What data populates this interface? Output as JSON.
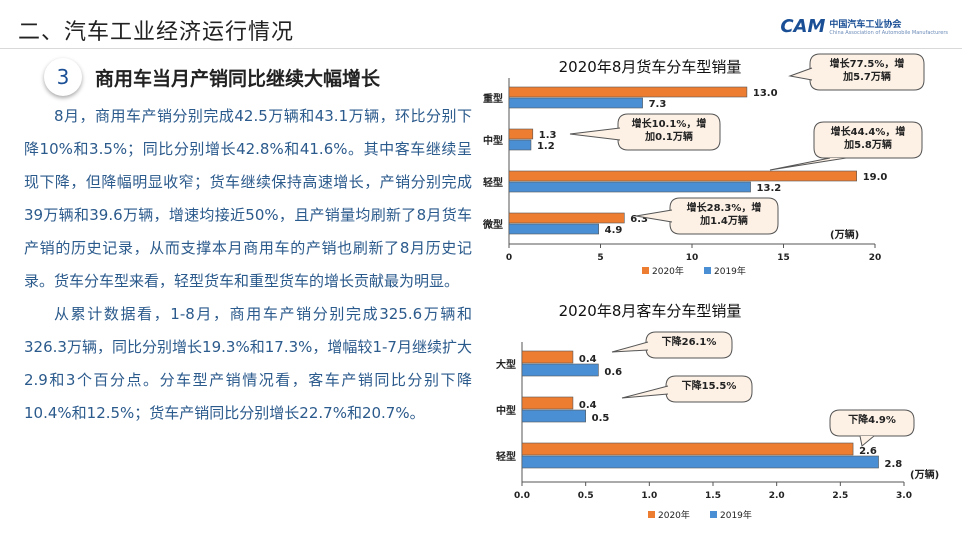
{
  "header": {
    "title": "二、汽车工业经济运行情况"
  },
  "logo": {
    "text": "中国汽车工业协会",
    "mark": "CAM",
    "subtitle": "China Association of Automobile Manufacturers"
  },
  "section": {
    "number": "3",
    "title": "商用车当月产销同比继续大幅增长"
  },
  "paragraphs": [
    "8月，商用车产销分别完成42.5万辆和43.1万辆，环比分别下降10%和3.5%；同比分别增长42.8%和41.6%。其中客车继续呈现下降，但降幅明显收窄；货车继续保持高速增长，产销分别完成39万辆和39.6万辆，增速均接近50%，且产销量均刷新了8月货车产销的历史记录，从而支撑本月商用车的产销也刷新了8月历史记录。货车分车型来看，轻型货车和重型货车的增长贡献最为明显。",
    "从累计数据看，1-8月，商用车产销分别完成325.6万辆和326.3万辆，同比分别增长19.3%和17.3%，增幅较1-7月继续扩大2.9和3个百分点。分车型产销情况看，客车产销同比分别下降10.4%和12.5%；货车产销同比分别增长22.7%和20.7%。"
  ],
  "colors": {
    "s2020": "#ed7d31",
    "s2019": "#4a8fd4",
    "callout_bg": "#fdf1e6",
    "callout_border": "#555555"
  },
  "chart_data": [
    {
      "type": "bar",
      "orientation": "horizontal",
      "title": "2020年8月货车分车型销量",
      "unit": "(万辆)",
      "categories": [
        "重型",
        "中型",
        "轻型",
        "微型"
      ],
      "series": [
        {
          "name": "2020年",
          "values": [
            13.0,
            1.3,
            19.0,
            6.3
          ]
        },
        {
          "name": "2019年",
          "values": [
            7.3,
            1.2,
            13.2,
            4.9
          ]
        }
      ],
      "data_labels": [
        [
          "13.0",
          "7.3"
        ],
        [
          "1.3",
          "1.2"
        ],
        [
          "19.0",
          "13.2"
        ],
        [
          "6.3",
          "4.9"
        ]
      ],
      "xlim": [
        0,
        20
      ],
      "xticks": [
        "0",
        "5",
        "10",
        "15",
        "20"
      ],
      "annotations": [
        "增长77.5%，增加5.7万辆",
        "增长10.1%，增加0.1万辆",
        "增长44.4%，增加5.8万辆",
        "增长28.3%，增加1.4万辆"
      ],
      "legend_position": "bottom"
    },
    {
      "type": "bar",
      "orientation": "horizontal",
      "title": "2020年8月客车分车型销量",
      "unit": "(万辆)",
      "categories": [
        "大型",
        "中型",
        "轻型"
      ],
      "series": [
        {
          "name": "2020年",
          "values": [
            0.4,
            0.4,
            2.6
          ]
        },
        {
          "name": "2019年",
          "values": [
            0.6,
            0.5,
            2.8
          ]
        }
      ],
      "data_labels": [
        [
          "0.4",
          "0.6"
        ],
        [
          "0.4",
          "0.5"
        ],
        [
          "2.6",
          "2.8"
        ]
      ],
      "xlim": [
        0,
        3.0
      ],
      "xticks": [
        "0.0",
        "0.5",
        "1.0",
        "1.5",
        "2.0",
        "2.5",
        "3.0"
      ],
      "annotations": [
        "下降26.1%",
        "下降15.5%",
        "下降4.9%"
      ],
      "legend_position": "bottom"
    }
  ]
}
